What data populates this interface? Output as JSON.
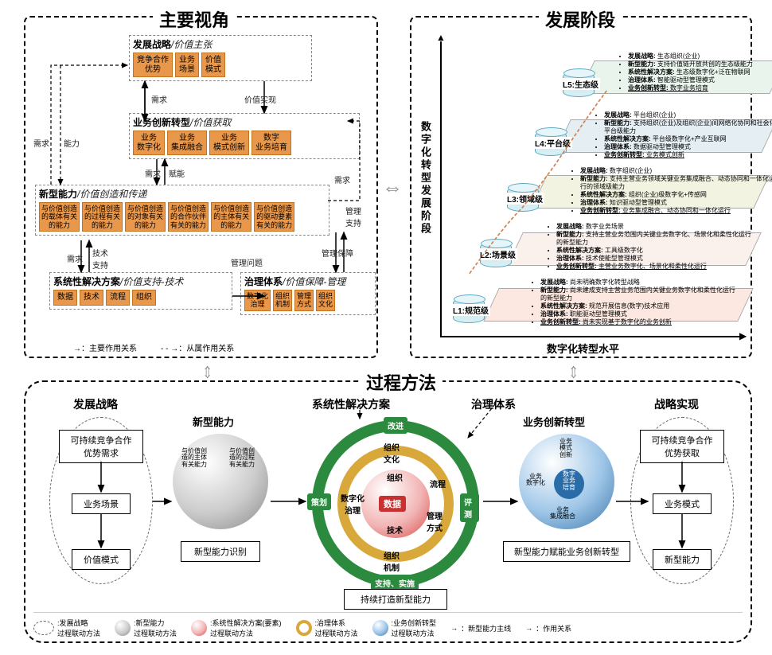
{
  "panels": {
    "perspectives": {
      "title": "主要视角"
    },
    "stages": {
      "title": "发展阶段"
    },
    "process": {
      "title": "过程方法"
    }
  },
  "p1": {
    "s1": {
      "title_b": "发展战略",
      "title_i": "/价值主张",
      "chips": [
        "竞争合作\n优势",
        "业务\n场景",
        "价值\n模式"
      ]
    },
    "s2": {
      "title_b": "业务创新转型",
      "title_i": "/价值获取",
      "chips": [
        "业务\n数字化",
        "业务\n集成融合",
        "业务\n模式创新",
        "数字\n业务培育"
      ]
    },
    "s3": {
      "title_b": "新型能力",
      "title_i": "/价值创造和传递",
      "chips": [
        "与价值创造\n的载体有关\n的能力",
        "与价值创造\n的过程有关\n的能力",
        "与价值创造\n的对象有关\n的能力",
        "与价值创造\n的合作伙伴\n有关的能力",
        "与价值创造\n的主体有关\n的能力",
        "与价值创造\n的驱动要素\n有关的能力"
      ]
    },
    "s4": {
      "title_b": "系统性解决方案",
      "title_i": "/价值支持-技术",
      "chips": [
        "数据",
        "技术",
        "流程",
        "组织"
      ]
    },
    "s5": {
      "title_b": "治理体系",
      "title_i": "/价值保障-管理",
      "chips": [
        "数字化\n治理",
        "组织\n机制",
        "管理\n方式",
        "组织\n文化"
      ]
    },
    "labels": {
      "needs": "需求",
      "ability": "能力",
      "enable": "赋能",
      "tech_support": "技术\n支持",
      "value_realize": "价值实现",
      "mgmt_support": "管理保障",
      "mgmt_feedback": "管理问题"
    },
    "legend": {
      "main": "：主要作用关系",
      "sub": "：从属作用关系"
    }
  },
  "p2": {
    "y_axis": "数字化转型发展阶段",
    "x_axis": "数字化转型水平",
    "stages": [
      {
        "name": "L1:规范级",
        "color": "#fce8e0",
        "items": [
          "发展战略: 尚未明确数字化转型战略",
          "新型能力: 尚未建成支持主营业务范围内关键业务数字化和柔性化运行的新型能力",
          "系统性解决方案: 规范开展信息(数字)技术应用",
          "治理体系: 职能驱动型管理模式",
          "业务创新转型: 尚未实现基于数字化的业务创新"
        ]
      },
      {
        "name": "L2:场景级",
        "color": "#faf0ec",
        "items": [
          "发展战略: 数字业务场景",
          "新型能力: 支持主营业务范围内关键业务数字化、场景化和柔性化运行的新型能力",
          "系统性解决方案: 工具级数字化",
          "治理体系: 技术使能型管理模式",
          "业务创新转型: 主营业务数字化、场景化和柔性化运行"
        ]
      },
      {
        "name": "L3:领域级",
        "color": "#f2f3e0",
        "items": [
          "发展战略: 数字组织(企业)",
          "新型能力: 支持主营业务领域关键业务集成融合、动态协同和一体化运行的领域级能力",
          "系统性解决方案: 组织(企业)级数字化+传感网",
          "治理体系: 知识驱动型管理模式",
          "业务创新转型: 业务集成融合、动态协同和一体化运行"
        ]
      },
      {
        "name": "L4:平台级",
        "color": "#e4eef3",
        "items": [
          "发展战略: 平台组织(企业)",
          "新型能力: 支持组织(企业)及组织(企业)间网络化协同和社会化协作的平台级能力",
          "系统性解决方案: 平台级数字化+产业互联网",
          "治理体系: 数据驱动型管理模式",
          "业务创新转型: 业务模式创新"
        ]
      },
      {
        "name": "L5:生态级",
        "color": "#e8f4ec",
        "items": [
          "发展战略: 生态组织(企业)",
          "新型能力: 支持价值链开放共创的生态级能力",
          "系统性解决方案: 生态级数字化+泛在物联网",
          "治理体系: 智能驱动型管理模式",
          "业务创新转型: 数字业务培育"
        ]
      }
    ]
  },
  "p3": {
    "cols": {
      "strategy": "发展战略",
      "solution": "系统性解决方案",
      "governance": "治理体系",
      "realize": "战略实现"
    },
    "left_boxes": [
      "可持续竞争合作\n优势需求",
      "业务场景",
      "价值模式"
    ],
    "right_boxes": [
      "可持续竞争合作\n优势获取",
      "业务模式",
      "新型能力"
    ],
    "sphere1": {
      "title": "新型能力",
      "caption": "新型能力识别",
      "minis": [
        "与价值创\n造的主体\n有关能力",
        "与价值创\n造的过程\n有关能力",
        "...",
        "...",
        "...",
        "..."
      ]
    },
    "sphere2": {
      "title": "业务创新转型",
      "caption": "新型能力赋能业务创新转型",
      "minis": [
        "业务\n模式\n创新",
        "业务\n数字化",
        "数字\n业务\n培育",
        "业务\n集成融合"
      ]
    },
    "rings": {
      "outer": {
        "top": "改进",
        "left": "策划",
        "right": "评测",
        "bottom": "支持、实施\n与运行"
      },
      "mid": {
        "tl": "组织\n文化",
        "bl": "组织\n机制",
        "tr": "流程",
        "br": "管理\n方式"
      },
      "inner": {
        "l": "数字化\n治理",
        "r": "技术",
        "t": "组织",
        "center": "数据"
      },
      "caption": "持续打造新型能力"
    },
    "legend": {
      "a": ":发展战略\n过程联动方法",
      "b": ":新型能力\n过程联动方法",
      "c": ":系统性解决方案(要素)\n过程联动方法",
      "d": ":治理体系\n过程联动方法",
      "e": ":业务创新转型\n过程联动方法",
      "f": "：新型能力主线",
      "g": "：作用关系"
    }
  }
}
